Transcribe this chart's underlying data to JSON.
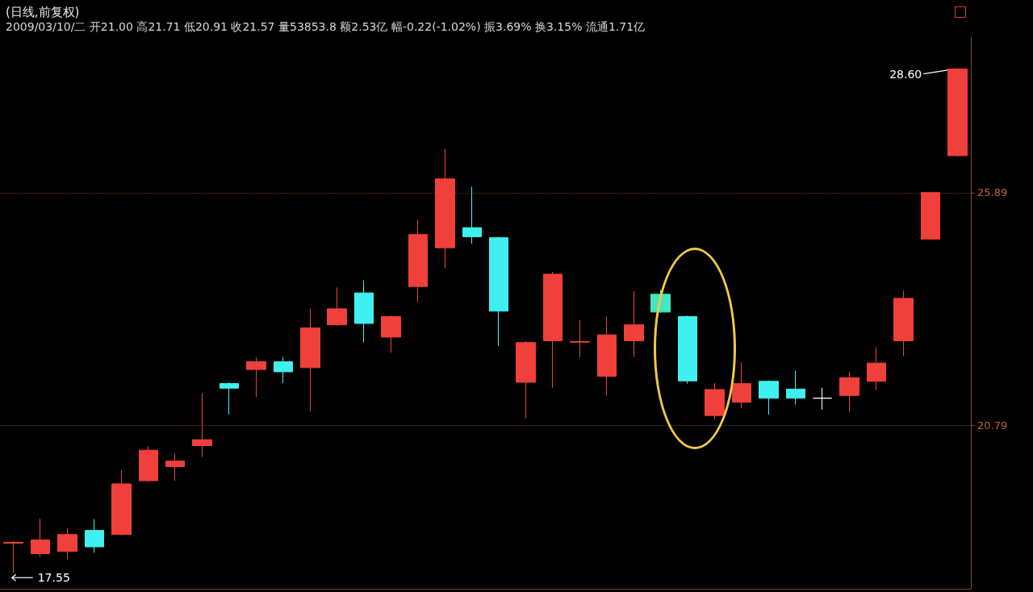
{
  "chart_data": {
    "type": "candlestick",
    "title": "(日线,前复权)",
    "subtitle": "2009/03/10/二 开21.00 高21.71 低20.91 收21.57 量53853.8 额2.53亿 幅-0.22(-1.02%) 振3.69% 换3.15% 流通1.71亿",
    "categories": [
      null,
      null,
      null,
      null,
      null,
      null,
      null,
      null,
      null,
      null,
      null,
      null,
      null,
      null,
      null,
      null,
      null,
      null,
      null,
      null,
      null,
      null,
      null,
      null,
      null,
      null,
      null,
      null,
      null,
      null,
      null,
      null,
      null,
      null,
      null,
      null
    ],
    "ohlc": [
      [
        18.2,
        18.25,
        17.55,
        18.22
      ],
      [
        17.97,
        18.74,
        17.9,
        18.27
      ],
      [
        18.02,
        18.53,
        17.85,
        18.39
      ],
      [
        18.48,
        18.73,
        17.99,
        18.12
      ],
      [
        18.39,
        19.8,
        18.37,
        19.5
      ],
      [
        19.57,
        20.32,
        19.55,
        20.24
      ],
      [
        19.88,
        20.17,
        19.57,
        20.0
      ],
      [
        20.34,
        21.49,
        20.09,
        20.47
      ],
      [
        21.7,
        21.73,
        21.02,
        21.6
      ],
      [
        22.01,
        22.28,
        21.41,
        22.18
      ],
      [
        22.18,
        22.28,
        21.71,
        21.96
      ],
      [
        22.05,
        23.34,
        21.09,
        22.92
      ],
      [
        22.99,
        23.81,
        22.97,
        23.34
      ],
      [
        23.69,
        23.96,
        22.6,
        23.02
      ],
      [
        22.72,
        23.19,
        22.38,
        23.17
      ],
      [
        23.83,
        25.3,
        23.49,
        24.97
      ],
      [
        24.68,
        26.85,
        24.23,
        26.19
      ],
      [
        25.12,
        26.02,
        24.77,
        24.92
      ],
      [
        24.9,
        24.92,
        22.53,
        23.29
      ],
      [
        21.73,
        22.63,
        20.94,
        22.6
      ],
      [
        22.64,
        24.15,
        21.61,
        24.1
      ],
      [
        22.61,
        23.09,
        22.28,
        22.62
      ],
      [
        21.86,
        23.17,
        21.44,
        22.77
      ],
      [
        22.64,
        23.73,
        22.28,
        22.99
      ],
      [
        23.66,
        23.76,
        23.25,
        23.27
      ],
      [
        23.17,
        23.19,
        21.7,
        21.76
      ],
      [
        21.0,
        21.71,
        20.91,
        21.57
      ],
      [
        21.29,
        22.17,
        21.16,
        21.7
      ],
      [
        21.75,
        21.77,
        21.02,
        21.38
      ],
      [
        21.58,
        21.98,
        21.24,
        21.38
      ],
      [
        21.38,
        21.61,
        21.13,
        21.38
      ],
      [
        21.44,
        21.96,
        21.08,
        21.83
      ],
      [
        21.75,
        22.5,
        21.56,
        22.15
      ],
      [
        22.64,
        23.74,
        22.3,
        23.57
      ],
      [
        24.87,
        25.91,
        24.85,
        25.89
      ],
      [
        26.7,
        28.6,
        26.68,
        28.6
      ]
    ],
    "colors": [
      "#e05030",
      "#f0403c",
      "#f0403c",
      "#40f0f0",
      "#f0403c",
      "#f0403c",
      "#f0403c",
      "#f0403c",
      "#40f0f0",
      "#f0403c",
      "#40f0f0",
      "#f0403c",
      "#f0403c",
      "#40f0f0",
      "#f0403c",
      "#f0403c",
      "#f0403c",
      "#40f0f0",
      "#40f0f0",
      "#f0403c",
      "#f0403c",
      "#e05030",
      "#f0403c",
      "#f0403c",
      "#40e8c0",
      "#40f0f0",
      "#f0403c",
      "#f0403c",
      "#40f0f0",
      "#40f0f0",
      "#ffffff",
      "#f0403c",
      "#f0403c",
      "#f0403c",
      "#f0403c",
      "#f0403c"
    ],
    "ylim": [
      17.2,
      29.3
    ],
    "yticks": [
      20.79,
      25.89
    ],
    "grid": "y",
    "tick_labels": "y",
    "annotations": [
      "28.60",
      "17.55"
    ]
  }
}
